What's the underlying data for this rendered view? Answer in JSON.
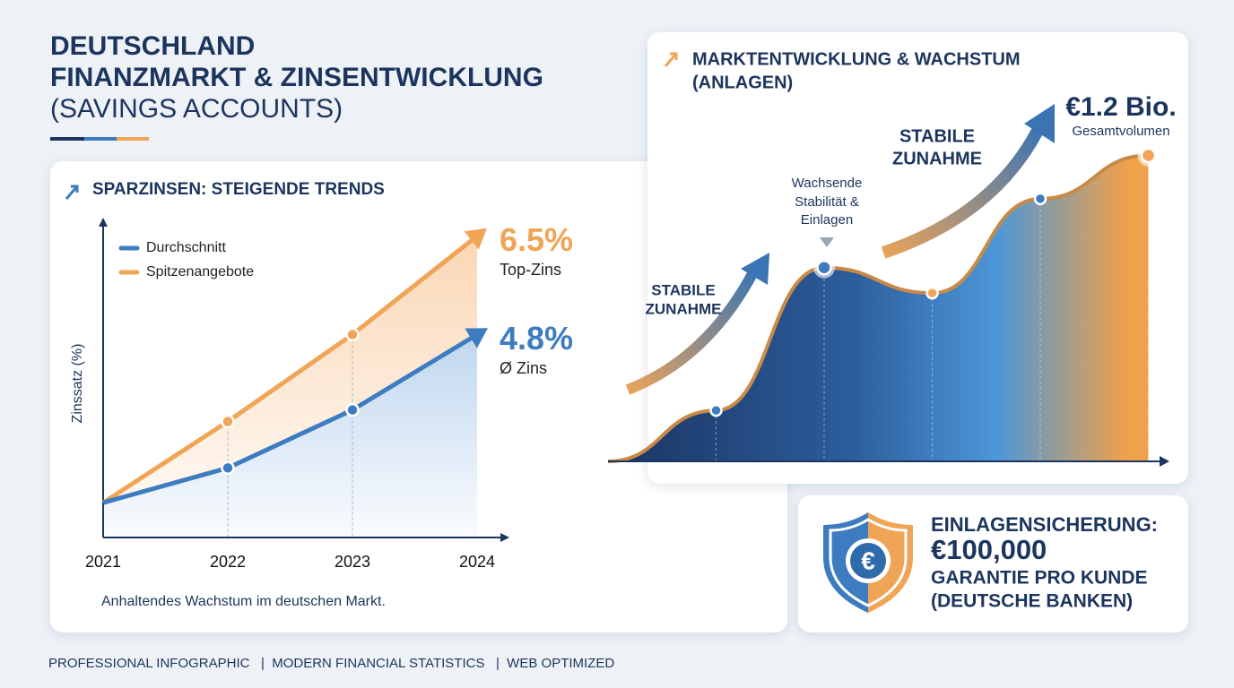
{
  "header": {
    "title_lines": [
      "DEUTSCHLAND",
      "FINANZMARKT & ZINSENTWICKLUNG",
      "(SAVINGS ACCOUNTS)"
    ]
  },
  "chart_data": [
    {
      "type": "line",
      "title": "SPARZINSEN: STEIGENDE TRENDS",
      "y_label": "Zinssatz (%)",
      "categories": [
        "2021",
        "2022",
        "2023",
        "2024"
      ],
      "series": [
        {
          "name": "Durchschnitt",
          "color": "#3d7cc0",
          "values": [
            1.9,
            2.5,
            3.5,
            4.8
          ],
          "end_label": "4.8%",
          "end_caption": "Ø Zins"
        },
        {
          "name": "Spitzenangebote",
          "color": "#f0a456",
          "values": [
            1.9,
            3.3,
            4.8,
            6.5
          ],
          "end_label": "6.5%",
          "end_caption": "Top-Zins"
        }
      ],
      "ylim": [
        1.3,
        6.8
      ],
      "caption": "Anhaltendes Wachstum im deutschen Markt."
    },
    {
      "type": "area",
      "title_lines": [
        "MARKTENTWICKLUNG & WACHSTUM",
        "(ANLAGEN)"
      ],
      "categories": [
        null,
        null,
        null,
        null,
        null
      ],
      "values": [
        0.2,
        0.76,
        0.66,
        1.03,
        1.2
      ],
      "value_labels": [
        null,
        null,
        null,
        null,
        "€1.2 Bio."
      ],
      "value_caption": "Gesamtvolumen",
      "ylim": [
        0,
        1.3
      ],
      "annotation": [
        "Wachsende",
        "Stabilität &",
        "Einlagen"
      ],
      "callouts": [
        [
          "STABILE",
          "ZUNAHME"
        ],
        [
          "STABILE",
          "ZUNAHME"
        ]
      ]
    }
  ],
  "deposit_card": {
    "lines": [
      "EINLAGENSICHERUNG:",
      "€100,000",
      "GARANTIE PRO KUNDE",
      "(DEUTSCHE BANKEN)"
    ],
    "icon": "€"
  },
  "footer": "PROFESSIONAL INFOGRAPHIC   |  MODERN FINANCIAL STATISTICS   |  WEB OPTIMIZED"
}
